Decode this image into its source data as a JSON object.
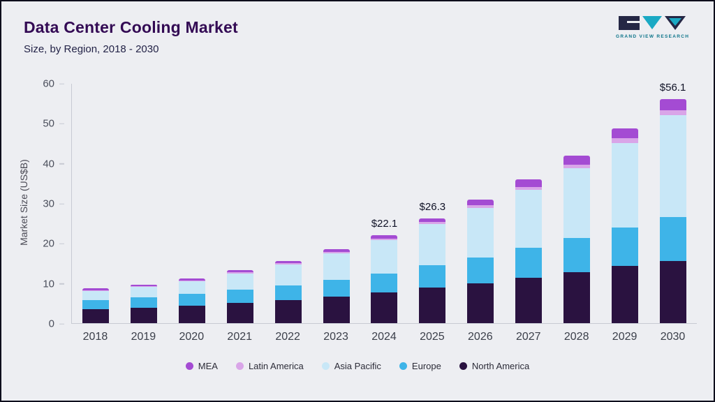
{
  "header": {
    "title": "Data Center Cooling Market",
    "subtitle": "Size, by Region, 2018 - 2030",
    "logo_text": "GRAND VIEW RESEARCH"
  },
  "brand": {
    "logo_dark": "#252745",
    "logo_teal": "#1aa9c4"
  },
  "chart_data": {
    "type": "bar",
    "stacked": true,
    "title": "Data Center Cooling Market Size, by Region, 2018 - 2030",
    "ylabel": "Market Size (US$B)",
    "ylim": [
      0,
      60
    ],
    "yticks": [
      0,
      10,
      20,
      30,
      40,
      50,
      60
    ],
    "grid": false,
    "legend_position": "bottom",
    "categories": [
      "2018",
      "2019",
      "2020",
      "2021",
      "2022",
      "2023",
      "2024",
      "2025",
      "2026",
      "2027",
      "2028",
      "2029",
      "2030"
    ],
    "series": [
      {
        "name": "North America",
        "color": "#2a1240",
        "values": [
          3.5,
          3.9,
          4.4,
          5.0,
          5.8,
          6.6,
          7.7,
          9.0,
          10.0,
          11.3,
          12.8,
          14.3,
          15.6
        ]
      },
      {
        "name": "Europe",
        "color": "#3eb4e8",
        "values": [
          2.3,
          2.6,
          2.9,
          3.4,
          3.7,
          4.3,
          4.8,
          5.6,
          6.5,
          7.6,
          8.6,
          9.7,
          11.0
        ]
      },
      {
        "name": "Asia Pacific",
        "color": "#c8e7f7",
        "values": [
          2.3,
          2.6,
          3.2,
          4.0,
          5.2,
          6.6,
          8.3,
          10.2,
          12.4,
          14.5,
          17.5,
          21.2,
          25.5
        ]
      },
      {
        "name": "Latin America",
        "color": "#d9a5e8",
        "values": [
          0.2,
          0.2,
          0.25,
          0.3,
          0.3,
          0.35,
          0.4,
          0.5,
          0.6,
          0.8,
          0.9,
          1.1,
          1.3
        ]
      },
      {
        "name": "MEA",
        "color": "#a44bd3",
        "values": [
          0.4,
          0.4,
          0.5,
          0.55,
          0.6,
          0.75,
          0.9,
          1.0,
          1.5,
          1.8,
          2.2,
          2.5,
          2.7
        ]
      }
    ],
    "value_labels": {
      "2024": "$22.1",
      "2025": "$26.3",
      "2030": "$56.1"
    },
    "legend": [
      {
        "label": "MEA",
        "color": "#a44bd3"
      },
      {
        "label": "Latin America",
        "color": "#d9a5e8"
      },
      {
        "label": "Asia Pacific",
        "color": "#c8e7f7"
      },
      {
        "label": "Europe",
        "color": "#3eb4e8"
      },
      {
        "label": "North America",
        "color": "#2a1240"
      }
    ]
  }
}
